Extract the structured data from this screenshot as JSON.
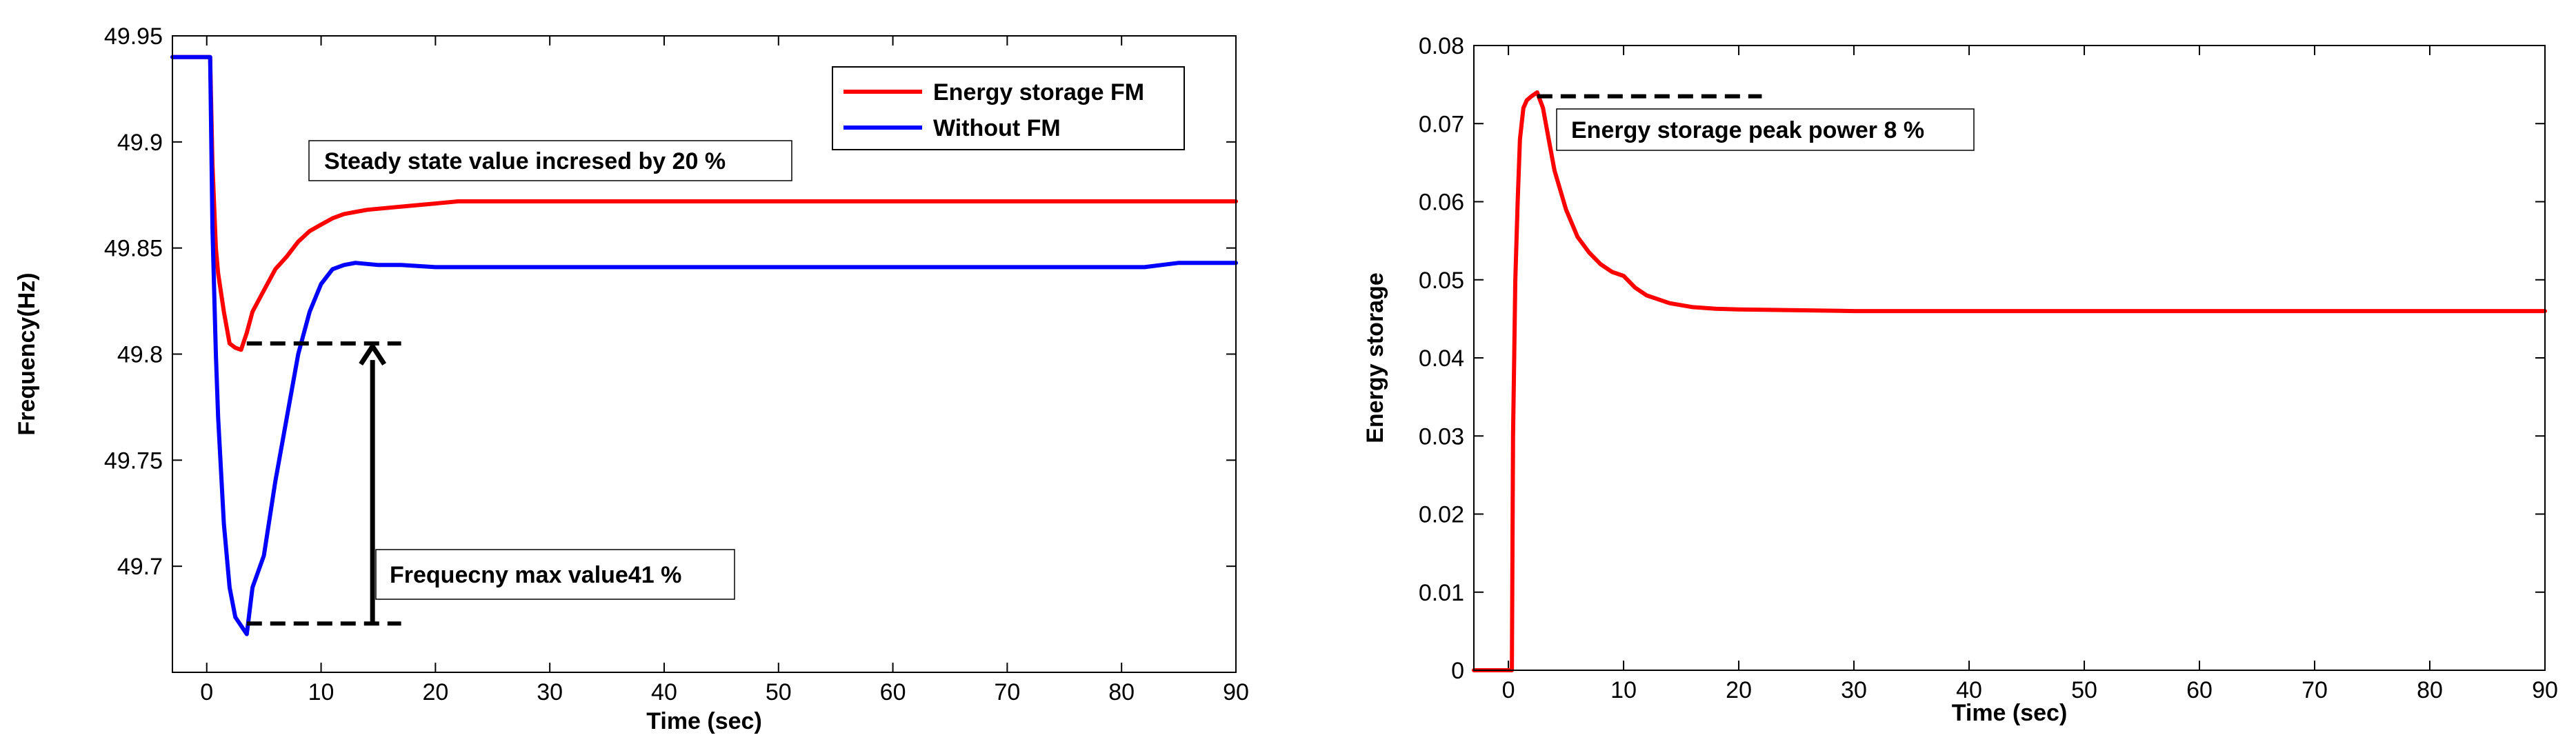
{
  "chart_data": [
    {
      "type": "line",
      "xlabel": "Time (sec)",
      "ylabel": "Frequency(Hz)",
      "xlim": [
        -3,
        90
      ],
      "ylim": [
        49.65,
        49.95
      ],
      "xticks": [
        0,
        10,
        20,
        30,
        40,
        50,
        60,
        70,
        80,
        90
      ],
      "xtick_labels": [
        "0",
        "10",
        "20",
        "30",
        "40",
        "50",
        "60",
        "70",
        "80",
        "90"
      ],
      "yticks": [
        49.7,
        49.75,
        49.8,
        49.85,
        49.9,
        49.95
      ],
      "ytick_labels": [
        "49.7",
        "49.75",
        "49.8",
        "49.85",
        "49.9",
        "49.95"
      ],
      "grid": false,
      "legend_position": "top-right",
      "series": [
        {
          "name": "Energy storage FM",
          "color": "#ff0000",
          "x": [
            -3,
            0.3,
            0.5,
            0.8,
            1,
            1.5,
            2,
            2.5,
            3,
            3.5,
            4,
            5,
            6,
            7,
            8,
            9,
            10,
            11,
            12,
            14,
            16,
            18,
            20,
            22,
            30,
            40,
            60,
            80,
            90
          ],
          "y": [
            49.94,
            49.94,
            49.89,
            49.85,
            49.838,
            49.82,
            49.805,
            49.803,
            49.802,
            49.81,
            49.82,
            49.83,
            49.84,
            49.846,
            49.853,
            49.858,
            49.861,
            49.864,
            49.866,
            49.868,
            49.869,
            49.87,
            49.871,
            49.872,
            49.872,
            49.872,
            49.872,
            49.872,
            49.872
          ]
        },
        {
          "name": "Without FM",
          "color": "#0000ff",
          "x": [
            -3,
            0.3,
            0.5,
            0.8,
            1,
            1.5,
            2,
            2.5,
            3,
            3.5,
            4,
            5,
            6,
            7,
            8,
            9,
            10,
            11,
            12,
            13,
            15,
            17,
            20,
            30,
            40,
            60,
            82,
            85,
            90
          ],
          "y": [
            49.94,
            49.94,
            49.86,
            49.8,
            49.77,
            49.72,
            49.69,
            49.676,
            49.672,
            49.668,
            49.69,
            49.705,
            49.74,
            49.77,
            49.8,
            49.82,
            49.833,
            49.84,
            49.842,
            49.843,
            49.842,
            49.842,
            49.841,
            49.841,
            49.841,
            49.841,
            49.841,
            49.843,
            49.843
          ]
        }
      ],
      "annotations": {
        "steady_state": "Steady state value incresed by 20 %",
        "freq_max": "Frequecny max value41 %",
        "arrow_x": 14.5,
        "arrow_y_from": 49.673,
        "arrow_y_to": 49.805,
        "dash_upper": {
          "x_from": 3.5,
          "x_to": 17,
          "y": 49.805
        },
        "dash_lower": {
          "x_from": 3.5,
          "x_to": 17,
          "y": 49.673
        }
      }
    },
    {
      "type": "line",
      "xlabel": "Time (sec)",
      "ylabel": "Energy storage",
      "xlim": [
        -3,
        90
      ],
      "ylim": [
        0,
        0.08
      ],
      "xticks": [
        0,
        10,
        20,
        30,
        40,
        50,
        60,
        70,
        80,
        90
      ],
      "xtick_labels": [
        "0",
        "10",
        "20",
        "30",
        "40",
        "50",
        "60",
        "70",
        "80",
        "90"
      ],
      "yticks": [
        0,
        0.01,
        0.02,
        0.03,
        0.04,
        0.05,
        0.06,
        0.07,
        0.08
      ],
      "ytick_labels": [
        "0",
        "0.01",
        "0.02",
        "0.03",
        "0.04",
        "0.05",
        "0.06",
        "0.07",
        "0.08"
      ],
      "grid": false,
      "series": [
        {
          "name": "Energy storage",
          "color": "#ff0000",
          "x": [
            -3,
            0.3,
            0.4,
            0.6,
            0.8,
            1,
            1.3,
            1.6,
            2,
            2.5,
            3,
            3.5,
            4,
            5,
            6,
            7,
            8,
            9,
            10,
            11,
            12,
            14,
            16,
            18,
            20,
            25,
            30,
            40,
            50,
            60,
            70,
            80,
            90
          ],
          "y": [
            0,
            0,
            0.03,
            0.05,
            0.06,
            0.068,
            0.072,
            0.073,
            0.0735,
            0.074,
            0.072,
            0.068,
            0.064,
            0.059,
            0.0555,
            0.0535,
            0.052,
            0.051,
            0.0505,
            0.049,
            0.048,
            0.047,
            0.0465,
            0.0463,
            0.0462,
            0.0461,
            0.046,
            0.046,
            0.046,
            0.046,
            0.046,
            0.046,
            0.046
          ]
        }
      ],
      "annotations": {
        "peak": "Energy storage peak power 8 %",
        "dash": {
          "x_from": 2.5,
          "x_to": 22,
          "y": 0.0735
        }
      }
    }
  ]
}
